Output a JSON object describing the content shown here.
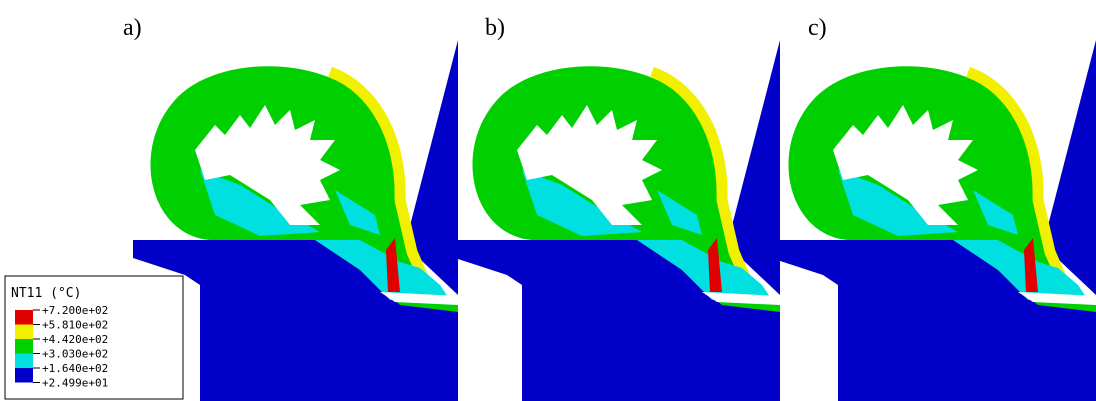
{
  "panels": [
    {
      "label": "a)"
    },
    {
      "label": "b)"
    },
    {
      "label": "c)"
    }
  ],
  "legend": {
    "title": "NT11 (°C)",
    "labels": [
      "+7.200e+02",
      "+5.810e+02",
      "+4.420e+02",
      "+3.030e+02",
      "+1.640e+02",
      "+2.499e+01"
    ]
  }
}
